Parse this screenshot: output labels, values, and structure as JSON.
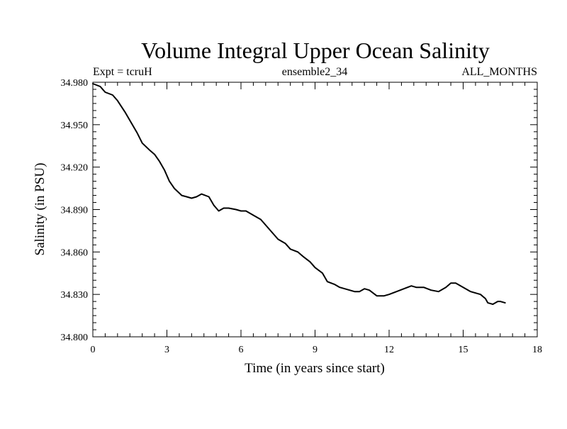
{
  "chart_data": {
    "type": "line",
    "title": "Volume Integral Upper Ocean Salinity",
    "subtitle_left": "Expt = tcruH",
    "subtitle_center": "ensemble2_34",
    "subtitle_right": "ALL_MONTHS",
    "xlabel": "Time (in years since start)",
    "ylabel": "Salinity (in PSU)",
    "xlim": [
      0,
      18
    ],
    "ylim": [
      34.8,
      34.98
    ],
    "x_ticks": [
      0,
      3,
      6,
      9,
      12,
      15,
      18
    ],
    "x_tick_labels": [
      "0",
      "3",
      "6",
      "9",
      "12",
      "15",
      "18"
    ],
    "y_ticks": [
      34.8,
      34.83,
      34.86,
      34.89,
      34.92,
      34.95,
      34.98
    ],
    "y_tick_labels": [
      "34.800",
      "34.830",
      "34.860",
      "34.890",
      "34.920",
      "34.950",
      "34.980"
    ],
    "grid": false,
    "line_color": "#000000",
    "series": [
      {
        "name": "salinity",
        "x": [
          0.0,
          0.3,
          0.5,
          0.8,
          1.0,
          1.3,
          1.6,
          1.8,
          2.0,
          2.3,
          2.5,
          2.7,
          2.9,
          3.1,
          3.3,
          3.6,
          3.8,
          4.0,
          4.2,
          4.4,
          4.7,
          4.9,
          5.1,
          5.3,
          5.5,
          5.8,
          6.0,
          6.2,
          6.5,
          6.8,
          7.0,
          7.3,
          7.5,
          7.8,
          8.0,
          8.3,
          8.5,
          8.8,
          9.0,
          9.3,
          9.5,
          9.8,
          10.0,
          10.2,
          10.4,
          10.6,
          10.8,
          11.0,
          11.2,
          11.5,
          11.8,
          12.0,
          12.3,
          12.6,
          12.9,
          13.1,
          13.4,
          13.7,
          14.0,
          14.3,
          14.5,
          14.7,
          14.9,
          15.1,
          15.3,
          15.5,
          15.7,
          15.9,
          16.0,
          16.2,
          16.4,
          16.5,
          16.7
        ],
        "values": [
          34.979,
          34.977,
          34.973,
          34.971,
          34.967,
          34.959,
          34.95,
          34.944,
          34.937,
          34.932,
          34.929,
          34.924,
          34.918,
          34.91,
          34.905,
          34.9,
          34.899,
          34.898,
          34.899,
          34.901,
          34.899,
          34.893,
          34.889,
          34.891,
          34.891,
          34.89,
          34.889,
          34.889,
          34.886,
          34.883,
          34.879,
          34.873,
          34.869,
          34.866,
          34.862,
          34.86,
          34.857,
          34.853,
          34.849,
          34.845,
          34.839,
          34.837,
          34.835,
          34.834,
          34.833,
          34.832,
          34.832,
          34.834,
          34.833,
          34.829,
          34.829,
          34.83,
          34.832,
          34.834,
          34.836,
          34.835,
          34.835,
          34.833,
          34.832,
          34.835,
          34.838,
          34.838,
          34.836,
          34.834,
          34.832,
          34.831,
          34.83,
          34.827,
          34.824,
          34.823,
          34.825,
          34.825,
          34.824
        ]
      }
    ]
  }
}
